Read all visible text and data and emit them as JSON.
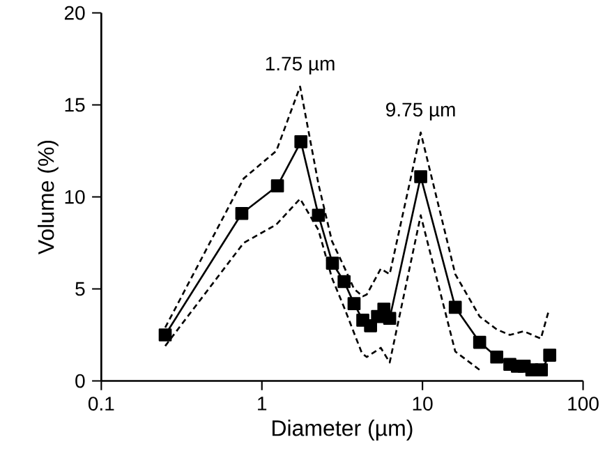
{
  "chart_data": {
    "type": "line",
    "xlabel": "Diameter (µm)",
    "ylabel": "Volume (%)",
    "log": "x",
    "xlim": [
      0.1,
      100
    ],
    "xticks": [
      0.1,
      1,
      10,
      100
    ],
    "ylim": [
      0,
      20
    ],
    "yticks": [
      0,
      5,
      10,
      15,
      20
    ],
    "grid": false,
    "series": [
      {
        "color": "#000000",
        "marker": "none",
        "line_style": "dashed",
        "x": [
          0.25,
          0.77,
          1.23,
          1.73,
          2.25,
          2.73,
          3.25,
          3.75,
          4.25,
          4.5,
          5.5,
          6.25,
          9.75,
          16,
          22.7,
          29,
          35,
          42.7,
          54.6,
          61.5
        ],
        "values": [
          2.9,
          11.0,
          12.5,
          16.0,
          10.7,
          7.6,
          6.2,
          5.0,
          4.6,
          4.7,
          6.1,
          5.8,
          13.5,
          5.8,
          3.5,
          2.8,
          2.5,
          2.7,
          2.3,
          3.9
        ]
      },
      {
        "color": "#000000",
        "marker": "none",
        "line_style": "dashed",
        "x": [
          0.25,
          0.77,
          1.23,
          1.73,
          2.25,
          2.73,
          3.25,
          4.2,
          4.5,
          5.5,
          6.25,
          9.75,
          16,
          22.7
        ],
        "values": [
          1.9,
          7.5,
          8.5,
          9.9,
          8.2,
          5.6,
          4.0,
          1.5,
          1.3,
          1.8,
          1.0,
          9.0,
          1.6,
          0.6
        ]
      },
      {
        "color": "#000000",
        "marker": "square",
        "line_style": "solid",
        "x": [
          0.25,
          0.75,
          1.25,
          1.75,
          2.25,
          2.75,
          3.25,
          3.75,
          4.25,
          4.75,
          5.25,
          5.75,
          6.25,
          9.75,
          16,
          22.7,
          29,
          35,
          39,
          43,
          48,
          55,
          62
        ],
        "values": [
          2.5,
          9.1,
          10.6,
          13.0,
          9.0,
          6.4,
          5.4,
          4.2,
          3.3,
          3.0,
          3.5,
          3.9,
          3.4,
          11.1,
          4.0,
          2.1,
          1.3,
          0.9,
          0.8,
          0.8,
          0.6,
          0.6,
          1.4
        ]
      }
    ],
    "annotations": [
      {
        "text": "1.75 µm",
        "x": 1.73,
        "y": 16.0
      },
      {
        "text": "9.75 µm",
        "x": 9.75,
        "y": 13.5
      }
    ]
  }
}
